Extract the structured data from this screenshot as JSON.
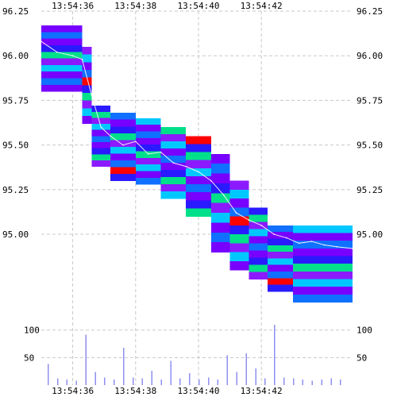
{
  "chart_data": {
    "type": "heatmap",
    "title": "",
    "xlabel": "",
    "ylabel": "",
    "x_ticks": [
      "13:54:36",
      "13:54:38",
      "13:54:40",
      "13:54:42"
    ],
    "x_tick_seconds": [
      36,
      38,
      40,
      42
    ],
    "xlim_seconds": [
      35.0,
      44.9
    ],
    "price_panel": {
      "ylim": [
        94.6,
        96.25
      ],
      "y_ticks": [
        "96.25",
        "96.00",
        "95.75",
        "95.50",
        "95.25",
        "95.00"
      ],
      "y_tick_values": [
        96.25,
        96.0,
        95.75,
        95.5,
        95.25,
        95.0
      ]
    },
    "volume_panel": {
      "ylim": [
        0,
        140
      ],
      "y_ticks": [
        "100",
        "50"
      ],
      "y_tick_values": [
        100,
        50
      ],
      "bar_color": "#8f8ff0"
    },
    "depth_colors": [
      "#7700ff",
      "#8c1aff",
      "#2a1aff",
      "#1070ff",
      "#00c8ff",
      "#00e08a",
      "#ff0000"
    ],
    "depth_bands": [
      {
        "t0": 35.0,
        "t1": 36.3,
        "top": 96.17,
        "bottom": 95.8
      },
      {
        "t0": 36.3,
        "t1": 36.6,
        "top": 96.05,
        "bottom": 95.62
      },
      {
        "t0": 36.6,
        "t1": 37.2,
        "top": 95.72,
        "bottom": 95.38
      },
      {
        "t0": 37.2,
        "t1": 38.0,
        "top": 95.68,
        "bottom": 95.3
      },
      {
        "t0": 38.0,
        "t1": 38.8,
        "top": 95.65,
        "bottom": 95.28
      },
      {
        "t0": 38.8,
        "t1": 39.6,
        "top": 95.6,
        "bottom": 95.2
      },
      {
        "t0": 39.6,
        "t1": 40.4,
        "top": 95.55,
        "bottom": 95.1
      },
      {
        "t0": 40.4,
        "t1": 41.0,
        "top": 95.45,
        "bottom": 94.9
      },
      {
        "t0": 41.0,
        "t1": 41.6,
        "top": 95.3,
        "bottom": 94.8
      },
      {
        "t0": 41.6,
        "t1": 42.2,
        "top": 95.15,
        "bottom": 94.75
      },
      {
        "t0": 42.2,
        "t1": 43.0,
        "top": 95.05,
        "bottom": 94.68
      },
      {
        "t0": 43.0,
        "t1": 44.9,
        "top": 95.05,
        "bottom": 94.62
      }
    ],
    "price_series": {
      "t": [
        35.0,
        35.5,
        36.0,
        36.3,
        36.6,
        36.9,
        37.2,
        37.6,
        38.0,
        38.4,
        38.8,
        39.2,
        39.6,
        40.0,
        40.4,
        40.8,
        41.2,
        41.6,
        42.0,
        42.4,
        42.8,
        43.2,
        43.6,
        44.0,
        44.4,
        44.9
      ],
      "price": [
        96.08,
        96.02,
        96.0,
        95.98,
        95.78,
        95.6,
        95.55,
        95.5,
        95.52,
        95.45,
        95.46,
        95.4,
        95.38,
        95.35,
        95.3,
        95.22,
        95.12,
        95.08,
        95.05,
        95.0,
        94.98,
        94.95,
        94.96,
        94.94,
        94.93,
        94.92
      ]
    },
    "volume": {
      "t": [
        35.2,
        35.5,
        35.8,
        36.1,
        36.4,
        36.7,
        37.0,
        37.3,
        37.6,
        37.9,
        38.2,
        38.5,
        38.8,
        39.1,
        39.4,
        39.7,
        40.0,
        40.3,
        40.6,
        40.9,
        41.2,
        41.5,
        41.8,
        42.1,
        42.4,
        42.7,
        43.0,
        43.3,
        43.6,
        43.9,
        44.2,
        44.5
      ],
      "values": [
        38,
        12,
        10,
        8,
        92,
        24,
        14,
        10,
        68,
        14,
        12,
        26,
        10,
        44,
        12,
        22,
        10,
        14,
        10,
        54,
        24,
        58,
        30,
        12,
        110,
        14,
        12,
        10,
        8,
        10,
        12,
        10
      ]
    }
  }
}
